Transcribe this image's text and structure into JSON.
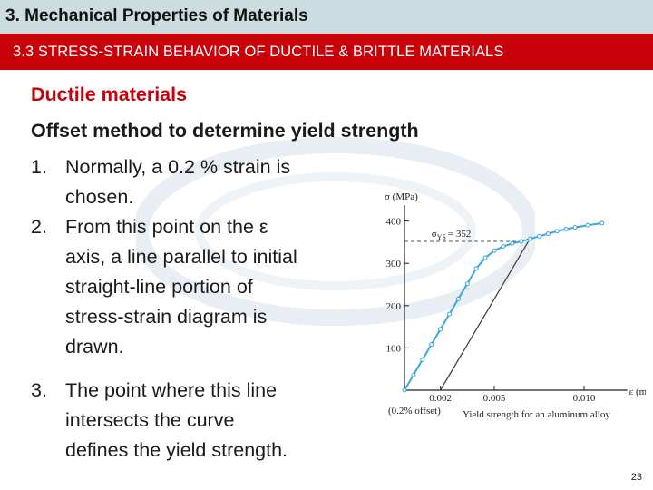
{
  "slide": {
    "title": "3. Mechanical Properties of Materials",
    "subtitle": "3.3 STRESS-STRAIN BEHAVIOR OF DUCTILE & BRITTLE MATERIALS",
    "heading": "Ductile materials",
    "subheading": "Offset method to determine yield strength",
    "list": [
      {
        "num": "1.",
        "lines": [
          "Normally, a 0.2 % strain is",
          "chosen."
        ]
      },
      {
        "num": "2.",
        "lines": [
          "From this point on the ε",
          "axis, a line parallel to initial",
          "straight-line portion of",
          "stress-strain diagram is",
          "drawn."
        ]
      },
      {
        "num": "3.",
        "lines": [
          "The point where this line",
          "intersects the curve",
          "defines the yield strength."
        ]
      }
    ],
    "page_number": "23",
    "colors": {
      "title_bar": "#ccdde1",
      "subtitle_bar": "#c8000a",
      "heading": "#c8000a",
      "curve": "#3aa6dd",
      "offset_line": "#444444"
    }
  },
  "chart_data": {
    "type": "line",
    "ylabel": "σ (MPa)",
    "xlabel": "ε (mm/mm)",
    "x_ticks": [
      "0.002",
      "0.005",
      "0.010"
    ],
    "y_ticks": [
      "100",
      "200",
      "300",
      "400"
    ],
    "xlim": [
      0,
      0.012
    ],
    "ylim": [
      0,
      420
    ],
    "annotation_label": "σ",
    "annotation_subscript": "YS",
    "annotation_value": "= 352",
    "offset_label": "(0.2% offset)",
    "caption": "Yield strength for an aluminum alloy",
    "series": [
      {
        "points": [
          [
            0,
            0
          ],
          [
            0.0005,
            36
          ],
          [
            0.001,
            72
          ],
          [
            0.0015,
            108
          ],
          [
            0.002,
            144
          ],
          [
            0.0025,
            180
          ],
          [
            0.003,
            216
          ],
          [
            0.0035,
            252
          ],
          [
            0.004,
            288
          ],
          [
            0.0045,
            313
          ],
          [
            0.005,
            330
          ],
          [
            0.0055,
            340
          ],
          [
            0.006,
            347
          ],
          [
            0.0065,
            352
          ],
          [
            0.007,
            358
          ],
          [
            0.0075,
            364
          ],
          [
            0.008,
            370
          ],
          [
            0.0085,
            376
          ],
          [
            0.009,
            381
          ],
          [
            0.0095,
            385
          ],
          [
            0.0102,
            390
          ],
          [
            0.011,
            395
          ]
        ]
      }
    ],
    "offset_line": [
      [
        0.002,
        0
      ],
      [
        0.0069,
        352
      ]
    ],
    "yield_point": [
      0.0068,
      352
    ]
  }
}
